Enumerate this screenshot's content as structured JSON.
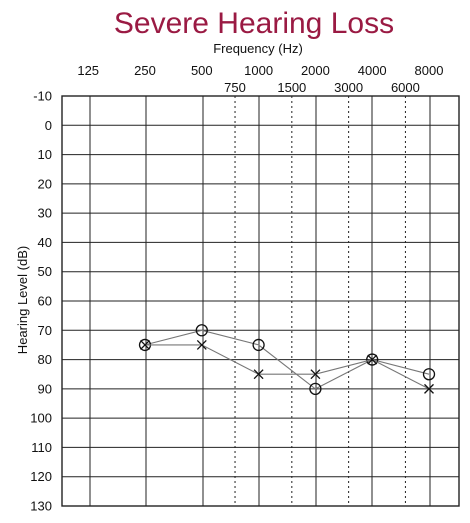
{
  "chart_data": {
    "type": "line",
    "title": "Severe Hearing Loss",
    "xlabel": "Frequency (Hz)",
    "ylabel": "Hearing Level (dB)",
    "x_major_ticks": [
      "125",
      "250",
      "500",
      "1000",
      "2000",
      "4000",
      "8000"
    ],
    "x_minor_ticks": [
      "750",
      "1500",
      "3000",
      "6000"
    ],
    "y_ticks": [
      "-10",
      "0",
      "10",
      "20",
      "30",
      "40",
      "50",
      "60",
      "70",
      "80",
      "90",
      "100",
      "110",
      "120",
      "130"
    ],
    "ylim": [
      -10,
      130
    ],
    "y_inverted": true,
    "x_scale": "log",
    "grid": true,
    "series": [
      {
        "marker": "circle",
        "x": [
          250,
          500,
          1000,
          2000,
          4000,
          8000
        ],
        "values": [
          75,
          70,
          75,
          90,
          80,
          85
        ]
      },
      {
        "marker": "cross",
        "x": [
          250,
          500,
          1000,
          2000,
          4000,
          8000
        ],
        "values": [
          75,
          75,
          85,
          85,
          80,
          90
        ]
      }
    ],
    "colors": {
      "title": "#9a1a43",
      "grid": "#222222",
      "line": "#777777",
      "marker": "#111111"
    }
  }
}
